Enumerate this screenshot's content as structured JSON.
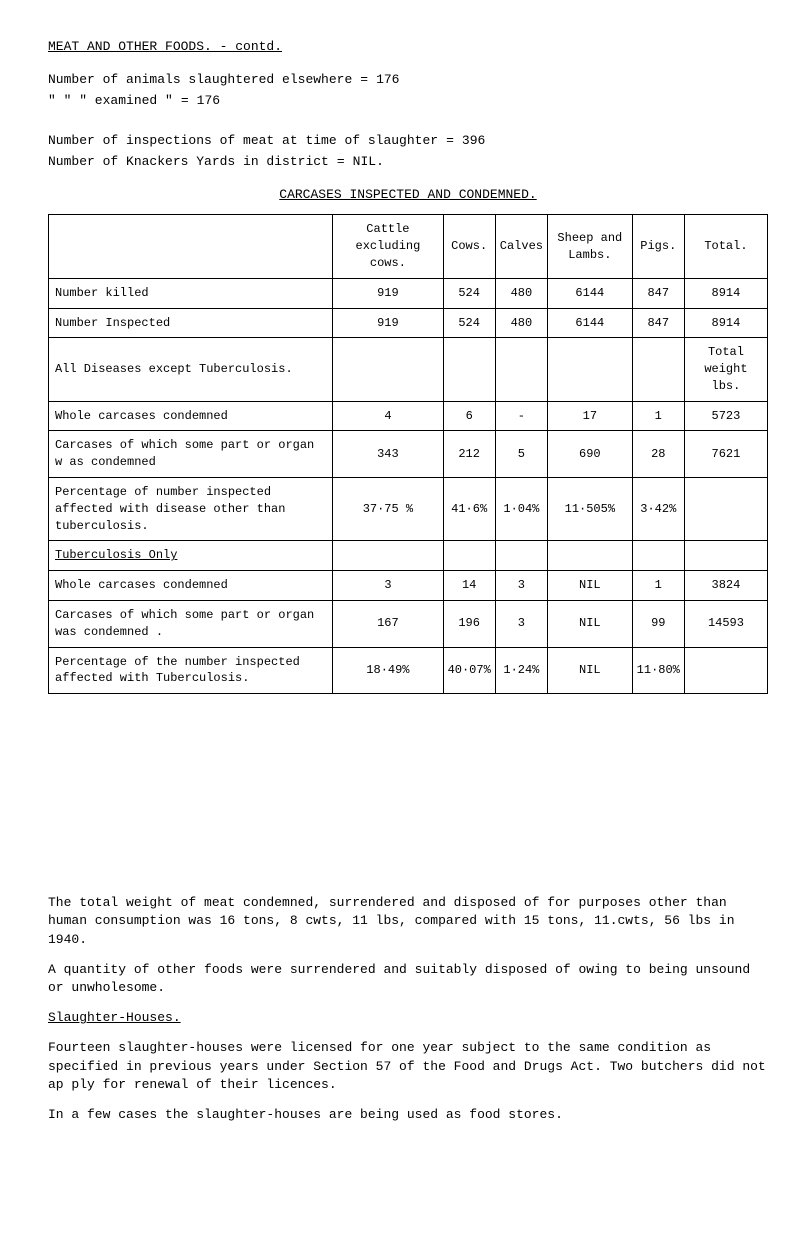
{
  "title": "MEAT AND OTHER FOODS. - contd.",
  "stats": [
    {
      "label": "Number of animals slaughtered elsewhere",
      "eq": "=",
      "value": "176"
    },
    {
      "label": "\"      \"      \"    examined         \"",
      "eq": "=",
      "value": "176"
    }
  ],
  "stats2": [
    {
      "label": "Number of inspections of meat at time of slaughter",
      "eq": "=",
      "value": "396"
    },
    {
      "label": "Number of Knackers Yards in district",
      "eq": "=",
      "value": "NIL."
    }
  ],
  "tableTitle": "CARCASES INSPECTED AND CONDEMNED.",
  "headers": [
    "",
    "Cattle excluding cows.",
    "Cows.",
    "Calves",
    "Sheep and Lambs.",
    "Pigs.",
    "Total."
  ],
  "rows": [
    {
      "label": "Number killed",
      "c1": "919",
      "c2": "524",
      "c3": "480",
      "c4": "6144",
      "c5": "847",
      "c6": "8914"
    },
    {
      "label": "Number Inspected",
      "c1": "919",
      "c2": "524",
      "c3": "480",
      "c4": "6144",
      "c5": "847",
      "c6": "8914"
    },
    {
      "label": "All Diseases except Tuberculosis.",
      "c1": "",
      "c2": "",
      "c3": "",
      "c4": "",
      "c5": "",
      "c6": "Total weight lbs."
    },
    {
      "label": "Whole carcases condemned",
      "c1": "4",
      "c2": "6",
      "c3": "-",
      "c4": "17",
      "c5": "1",
      "c6": "5723"
    },
    {
      "label": "Carcases of which some part or organ w as condemned",
      "c1": "343",
      "c2": "212",
      "c3": "5",
      "c4": "690",
      "c5": "28",
      "c6": "7621"
    },
    {
      "label": "Percentage of number inspected affected with disease other than tuberculosis.",
      "c1": "37·75 %",
      "c2": "41·6%",
      "c3": "1·04%",
      "c4": "11·505%",
      "c5": "3·42%",
      "c6": ""
    },
    {
      "label": "Tuberculosis Only",
      "c1": "",
      "c2": "",
      "c3": "",
      "c4": "",
      "c5": "",
      "c6": "",
      "underlined": true
    },
    {
      "label": "Whole carcases condemned",
      "c1": "3",
      "c2": "14",
      "c3": "3",
      "c4": "NIL",
      "c5": "1",
      "c6": "3824"
    },
    {
      "label": "Carcases of which some part or organ was condemned .",
      "c1": "167",
      "c2": "196",
      "c3": "3",
      "c4": "NIL",
      "c5": "99",
      "c6": "14593"
    },
    {
      "label": "Percentage of the number inspected affected with Tuberculosis.",
      "c1": "18·49%",
      "c2": "40·07%",
      "c3": "1·24%",
      "c4": "NIL",
      "c5": "11·80%",
      "c6": ""
    }
  ],
  "para1": "The total weight of meat condemned, surrendered and disposed of for purposes other than human consumption was 16 tons, 8 cwts, 11 lbs, compared with 15 tons, 11.cwts, 56 lbs in 1940.",
  "para2": "A quantity of other foods were surrendered and suitably disposed of owing to being unsound or unwholesome.",
  "subheading": "Slaughter-Houses.",
  "para3": "Fourteen slaughter-houses were licensed for one year subject to the same condition as specified in previous years under Section 57 of the Food and Drugs Act. Two butchers did not ap ply for renewal of their licences.",
  "para4": "In a few cases the slaughter-houses are being used as food stores."
}
